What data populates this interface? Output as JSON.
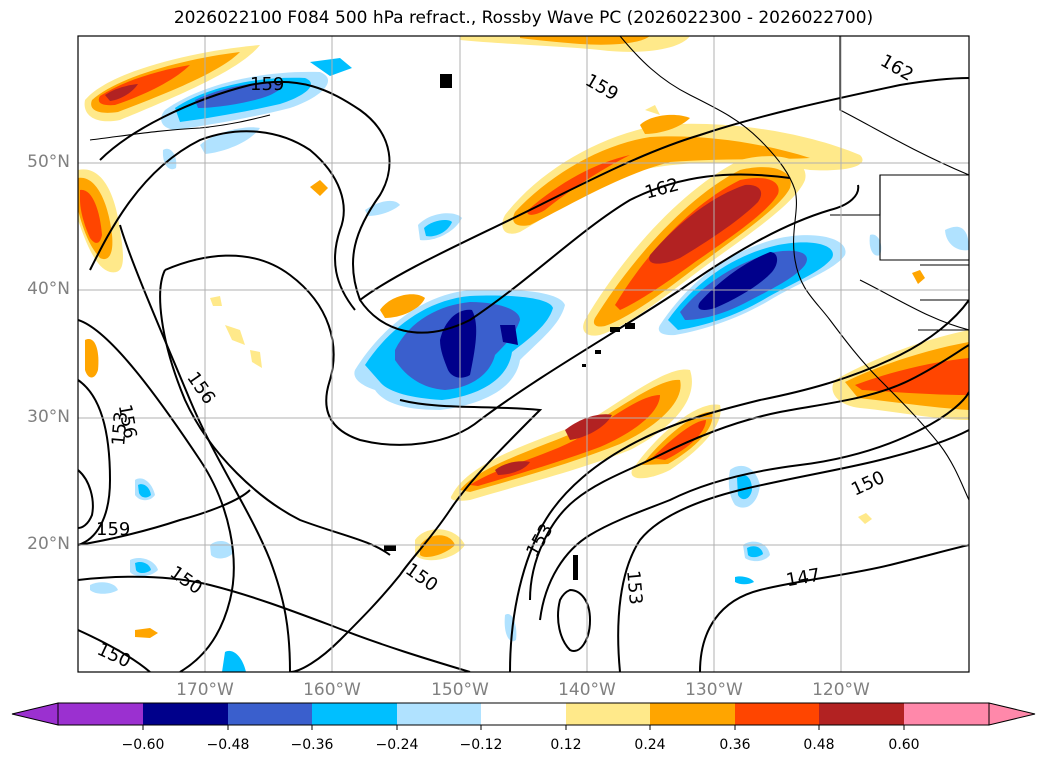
{
  "title": "2026022100 F084 500 hPa refract., Rossby Wave PC (2026022300 - 2026022700)",
  "map": {
    "lat_labels": [
      "50°N",
      "40°N",
      "30°N",
      "20°N"
    ],
    "lon_labels": [
      "170°W",
      "160°W",
      "150°W",
      "140°W",
      "130°W",
      "120°W"
    ],
    "contour_labels": [
      "159",
      "159",
      "162",
      "162",
      "156",
      "156",
      "153",
      "159",
      "150",
      "150",
      "153",
      "153",
      "150",
      "147",
      "150"
    ],
    "coastline_color": "#000000",
    "grid_color": "#b0b0b0"
  },
  "colorbar": {
    "ticks": [
      "−0.60",
      "−0.48",
      "−0.36",
      "−0.24",
      "−0.12",
      "0.12",
      "0.24",
      "0.36",
      "0.48",
      "0.60"
    ],
    "colors": [
      "#9b30d0",
      "#00008b",
      "#3a5fcd",
      "#00bfff",
      "#b0e2ff",
      "#ffffff",
      "#ffe98a",
      "#ffa500",
      "#ff4500",
      "#b22222",
      "#ff88aa"
    ]
  }
}
